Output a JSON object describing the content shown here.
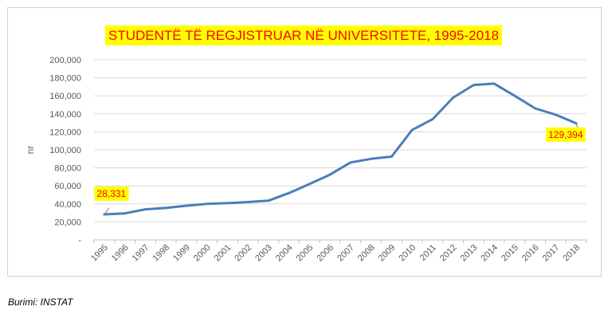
{
  "chart_data": {
    "type": "line",
    "title": "STUDENTË TË REGJISTRUAR NË UNIVERSITETE, 1995-2018",
    "ylabel": "nr",
    "xlabel": "",
    "x": [
      "1995",
      "1996",
      "1997",
      "1998",
      "1999",
      "2000",
      "2001",
      "2002",
      "2003",
      "2004",
      "2005",
      "2006",
      "2007",
      "2008",
      "2009",
      "2010",
      "2011",
      "2012",
      "2013",
      "2014",
      "2015",
      "2016",
      "2017",
      "2018"
    ],
    "series": [
      {
        "values": [
          28331,
          29500,
          34000,
          35500,
          38000,
          40000,
          40800,
          42000,
          43500,
          52000,
          62000,
          72500,
          86000,
          90000,
          92500,
          122000,
          134000,
          158000,
          172000,
          173500,
          160000,
          146000,
          139000,
          129394
        ]
      }
    ],
    "ylim": [
      0,
      200000
    ],
    "yticks": [
      "-",
      "20,000",
      "40,000",
      "60,000",
      "80,000",
      "100,000",
      "120,000",
      "140,000",
      "160,000",
      "180,000",
      "200,000"
    ],
    "gridlines": true,
    "colors": {
      "line": "#4a7ebb",
      "grid": "#d9d9d9",
      "title_bg": "#ffff00",
      "title_text": "#ff0000",
      "label_bg": "#ffff00",
      "label_text": "#ff0000"
    },
    "annotations": [
      {
        "index": 0,
        "text": "28,331"
      },
      {
        "index": 23,
        "text": "129,394"
      }
    ]
  },
  "source": "Burimi: INSTAT"
}
